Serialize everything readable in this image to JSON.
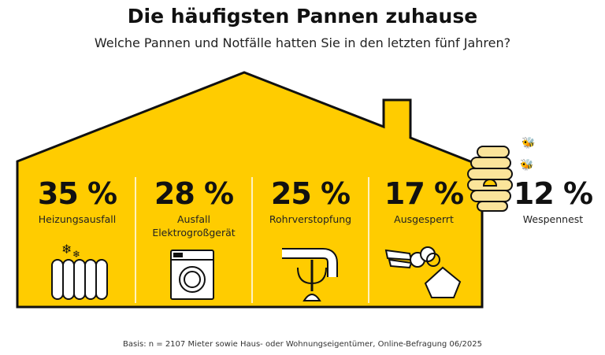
{
  "title": "Die häufigsten Pannen zuhause",
  "subtitle": "Welche Pannen und Notfälle hatten Sie in den letzten fünf Jahren?",
  "footer": "Basis: n = 2107 Mieter sowie Haus- oder Wohnungseigentümer, Online-Befragung 06/2025",
  "colors": {
    "house": "#FFCC00",
    "outline": "#111111",
    "hive": "#FBE49A"
  },
  "chart_data": {
    "type": "bar",
    "categories": [
      "Heizungsausfall",
      "Ausfall Elektrogroßgerät",
      "Rohrverstopfung",
      "Ausgesperrt",
      "Wespennest"
    ],
    "values": [
      35,
      28,
      25,
      17,
      12
    ],
    "unit": "%"
  },
  "items": [
    {
      "value": "35 %",
      "label": "Heizungsausfall",
      "icon": "radiator-icon"
    },
    {
      "value": "28 %",
      "label": "Ausfall Elektrogroßgerät",
      "icon": "washing-machine-icon"
    },
    {
      "value": "25 %",
      "label": "Rohrverstopfung",
      "icon": "pipe-plunger-icon"
    },
    {
      "value": "17 %",
      "label": "Ausgesperrt",
      "icon": "keys-icon"
    },
    {
      "value": "12 %",
      "label": "Wespennest",
      "icon": "beehive-icon"
    }
  ]
}
